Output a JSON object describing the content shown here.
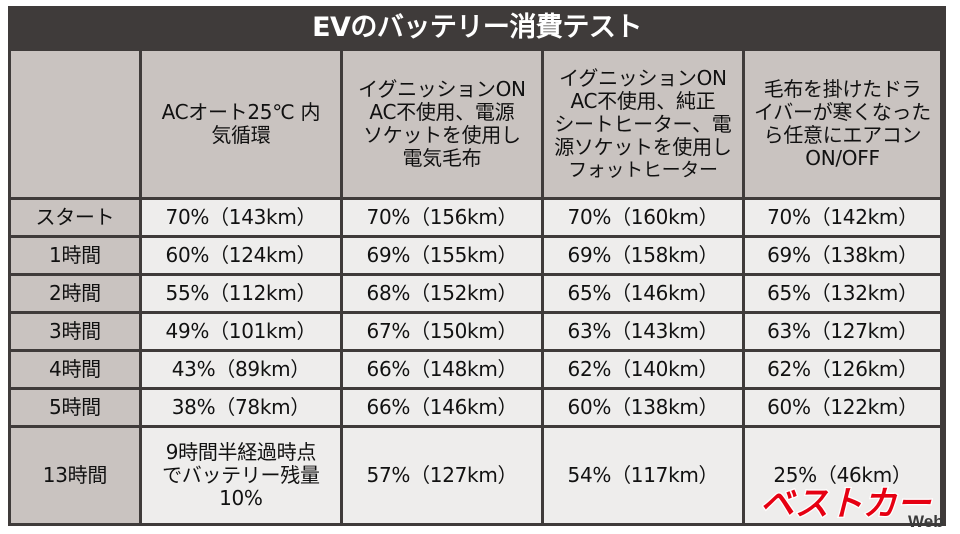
{
  "title": "EVのバッテリー消費テスト",
  "columns": [
    {
      "lines": [
        ""
      ]
    },
    {
      "lines": [
        "ACオート25℃ 内",
        "気循環"
      ]
    },
    {
      "lines": [
        "イグニッションON",
        "AC不使用、電源",
        "ソケットを使用し",
        "電気毛布"
      ]
    },
    {
      "lines": [
        "イグニッションON",
        "AC不使用、純正",
        "シートヒーター、電",
        "源ソケットを使用し",
        "フォットヒーター"
      ]
    },
    {
      "lines": [
        "毛布を掛けたドラ",
        "イバーが寒くなった",
        "ら任意にエアコン",
        "ON/OFF"
      ]
    }
  ],
  "rows": [
    {
      "label": "スタート",
      "cells": [
        "70%（143km）",
        "70%（156km）",
        "70%（160km）",
        "70%（142km）"
      ]
    },
    {
      "label": "1時間",
      "cells": [
        "60%（124km）",
        "69%（155km）",
        "69%（158km）",
        "69%（138km）"
      ]
    },
    {
      "label": "2時間",
      "cells": [
        "55%（112km）",
        "68%（152km）",
        "65%（146km）",
        "65%（132km）"
      ]
    },
    {
      "label": "3時間",
      "cells": [
        "49%（101km）",
        "67%（150km）",
        "63%（143km）",
        "63%（127km）"
      ]
    },
    {
      "label": "4時間",
      "cells": [
        "43%（89km）",
        "66%（148km）",
        "62%（140km）",
        "62%（126km）"
      ]
    },
    {
      "label": "5時間",
      "cells": [
        "38%（78km）",
        "66%（146km）",
        "60%（138km）",
        "60%（122km）"
      ]
    }
  ],
  "last_row": {
    "label": "13時間",
    "first_cell_lines": [
      "9時間半経過時点",
      "でバッテリー残量",
      "10%"
    ],
    "cells": [
      "57%（127km）",
      "54%（117km）",
      "25%（46km）"
    ]
  },
  "logo": {
    "main": "ベストカー",
    "sub": "Web"
  },
  "colors": {
    "frame": "#3f3b3a",
    "header_cell": "#c9c3c0",
    "data_cell": "#eeedec",
    "logo_red": "#e60012"
  }
}
